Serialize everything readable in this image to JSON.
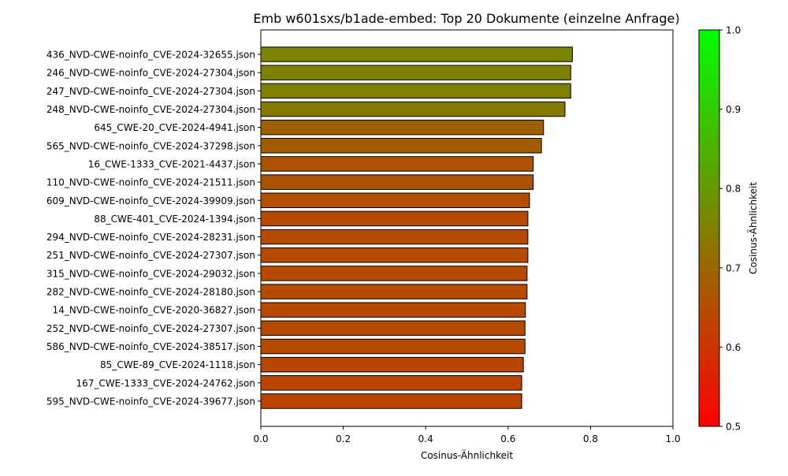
{
  "chart_data": {
    "type": "bar",
    "orientation": "horizontal",
    "title": "Emb w601sxs/b1ade-embed: Top 20 Dokumente (einzelne Anfrage)",
    "xlabel": "Cosinus-Ähnlichkeit",
    "ylabel": "",
    "xlim": [
      0,
      1.0
    ],
    "xticks": [
      "0.0",
      "0.2",
      "0.4",
      "0.6",
      "0.8",
      "1.0"
    ],
    "grid": false,
    "categories": [
      "436_NVD-CWE-noinfo_CVE-2024-32655.json",
      "246_NVD-CWE-noinfo_CVE-2024-27304.json",
      "247_NVD-CWE-noinfo_CVE-2024-27304.json",
      "248_NVD-CWE-noinfo_CVE-2024-27304.json",
      "645_CWE-20_CVE-2024-4941.json",
      "565_NVD-CWE-noinfo_CVE-2024-37298.json",
      "16_CWE-1333_CVE-2021-4437.json",
      "110_NVD-CWE-noinfo_CVE-2024-21511.json",
      "609_NVD-CWE-noinfo_CVE-2024-39909.json",
      "88_CWE-401_CVE-2024-1394.json",
      "294_NVD-CWE-noinfo_CVE-2024-28231.json",
      "251_NVD-CWE-noinfo_CVE-2024-27307.json",
      "315_NVD-CWE-noinfo_CVE-2024-29032.json",
      "282_NVD-CWE-noinfo_CVE-2024-28180.json",
      "14_NVD-CWE-noinfo_CVE-2020-36827.json",
      "252_NVD-CWE-noinfo_CVE-2024-27307.json",
      "586_NVD-CWE-noinfo_CVE-2024-38517.json",
      "85_CWE-89_CVE-2024-1118.json",
      "167_CWE-1333_CVE-2024-24762.json",
      "595_NVD-CWE-noinfo_CVE-2024-39677.json"
    ],
    "values": [
      0.756,
      0.752,
      0.752,
      0.738,
      0.686,
      0.681,
      0.661,
      0.661,
      0.652,
      0.648,
      0.648,
      0.648,
      0.646,
      0.646,
      0.642,
      0.641,
      0.641,
      0.637,
      0.633,
      0.633
    ],
    "colorbar": {
      "label": "Cosinus-Ähnlichkeit",
      "range": [
        0.5,
        1.0
      ],
      "ticks": [
        "0.5",
        "0.6",
        "0.7",
        "0.8",
        "0.9",
        "1.0"
      ],
      "color_low": "#ff0000",
      "color_high": "#00ff00"
    }
  }
}
